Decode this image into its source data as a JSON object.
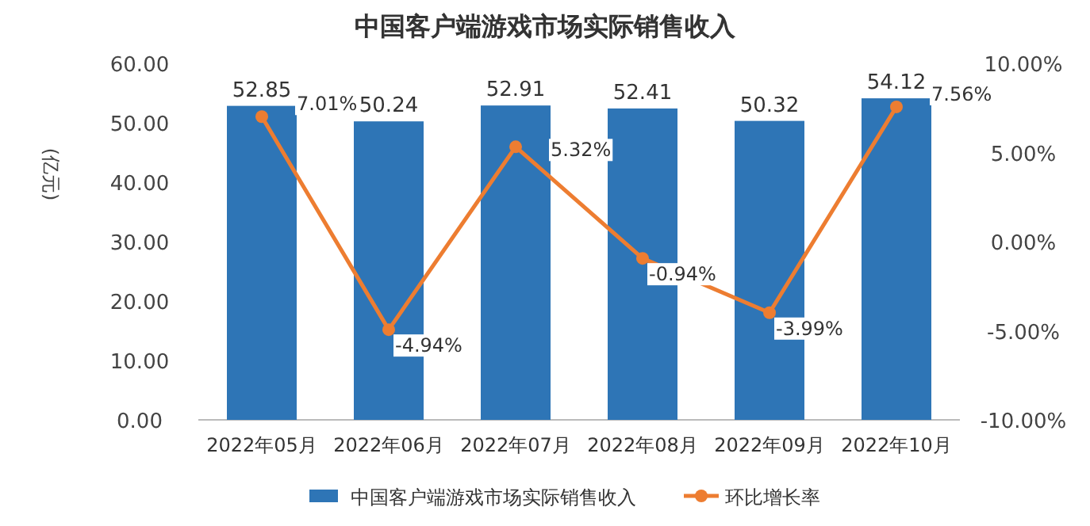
{
  "chart_data": {
    "type": "bar",
    "title": "中国客户端游戏市场实际销售收入",
    "ylabel": "(亿元)",
    "categories": [
      "2022年05月",
      "2022年06月",
      "2022年07月",
      "2022年08月",
      "2022年09月",
      "2022年10月"
    ],
    "series": [
      {
        "name": "中国客户端游戏市场实际销售收入",
        "color": "#2e75b6",
        "values": [
          52.85,
          50.24,
          52.91,
          52.41,
          50.32,
          54.12
        ],
        "value_labels": [
          "52.85",
          "50.24",
          "52.91",
          "52.41",
          "50.32",
          "54.12"
        ]
      },
      {
        "name": "环比增长率",
        "type": "line",
        "axis": "y2",
        "color": "#ed7d31",
        "marker": "circle",
        "values": [
          7.01,
          -4.94,
          5.32,
          -0.94,
          -3.99,
          7.56
        ],
        "value_labels": [
          "7.01%",
          "-4.94%",
          "5.32%",
          "-0.94%",
          "-3.99%",
          "7.56%"
        ]
      }
    ],
    "ylim": [
      0,
      60
    ],
    "yticks": [
      {
        "value": 0,
        "label": "0.00"
      },
      {
        "value": 10,
        "label": "10.00"
      },
      {
        "value": 20,
        "label": "20.00"
      },
      {
        "value": 30,
        "label": "30.00"
      },
      {
        "value": 40,
        "label": "40.00"
      },
      {
        "value": 50,
        "label": "50.00"
      },
      {
        "value": 60,
        "label": "60.00"
      }
    ],
    "y2lim": [
      -10,
      10
    ],
    "y2ticks": [
      {
        "value": -10,
        "label": "-10.00%"
      },
      {
        "value": -5,
        "label": "-5.00%"
      },
      {
        "value": 0,
        "label": "0.00%"
      },
      {
        "value": 5,
        "label": "5.00%"
      },
      {
        "value": 10,
        "label": "10.00%"
      }
    ],
    "legend": "bottom"
  }
}
